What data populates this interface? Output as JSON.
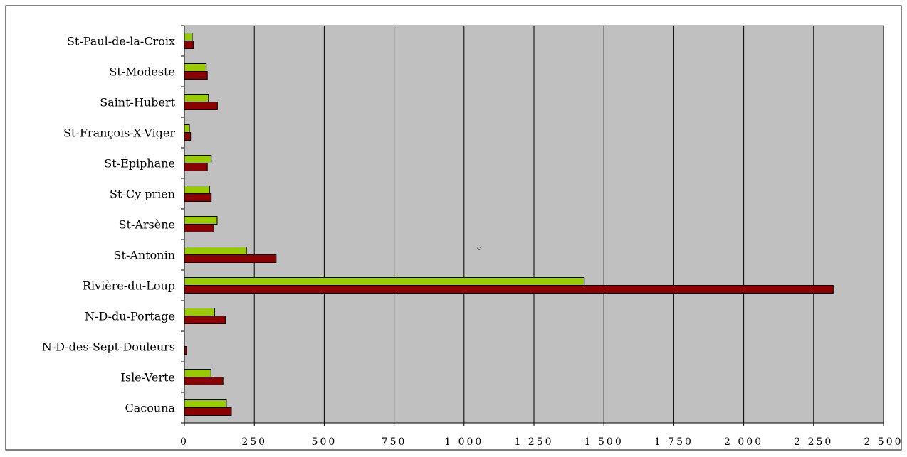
{
  "chart_data": {
    "type": "bar",
    "orientation": "horizontal",
    "title": "",
    "xlabel": "",
    "ylabel": "",
    "categories": [
      "St-Paul-de-la-Croix",
      "St-Modeste",
      "Saint-Hubert",
      "St-François-X-Viger",
      "St-Épiphane",
      "St-Cy prien",
      "St-Arsène",
      "St-Antonin",
      "Rivière-du-Loup",
      "N-D-du-Portage",
      "N-D-des-Sept-Douleurs",
      "Isle-Verte",
      "Cacouna"
    ],
    "series": [
      {
        "color": "#99cc00",
        "values": [
          28,
          78,
          86,
          18,
          96,
          90,
          117,
          222,
          1430,
          108,
          0,
          95,
          150
        ]
      },
      {
        "color": "#8b0000",
        "values": [
          32,
          82,
          118,
          22,
          82,
          96,
          105,
          328,
          2320,
          147,
          8,
          138,
          168
        ]
      }
    ],
    "xlim": [
      0,
      2500
    ],
    "xticks": [
      0,
      250,
      500,
      750,
      1000,
      1250,
      1500,
      1750,
      2000,
      2250,
      2500
    ],
    "xtick_labels": [
      "0",
      "250",
      "500",
      "750",
      "1 000",
      "1 250",
      "1 500",
      "1 750",
      "2 000",
      "2 250",
      "2 500"
    ],
    "annotation": "c",
    "grid": "vertical",
    "legend": "none",
    "plot_background": "#c0c0c0"
  }
}
